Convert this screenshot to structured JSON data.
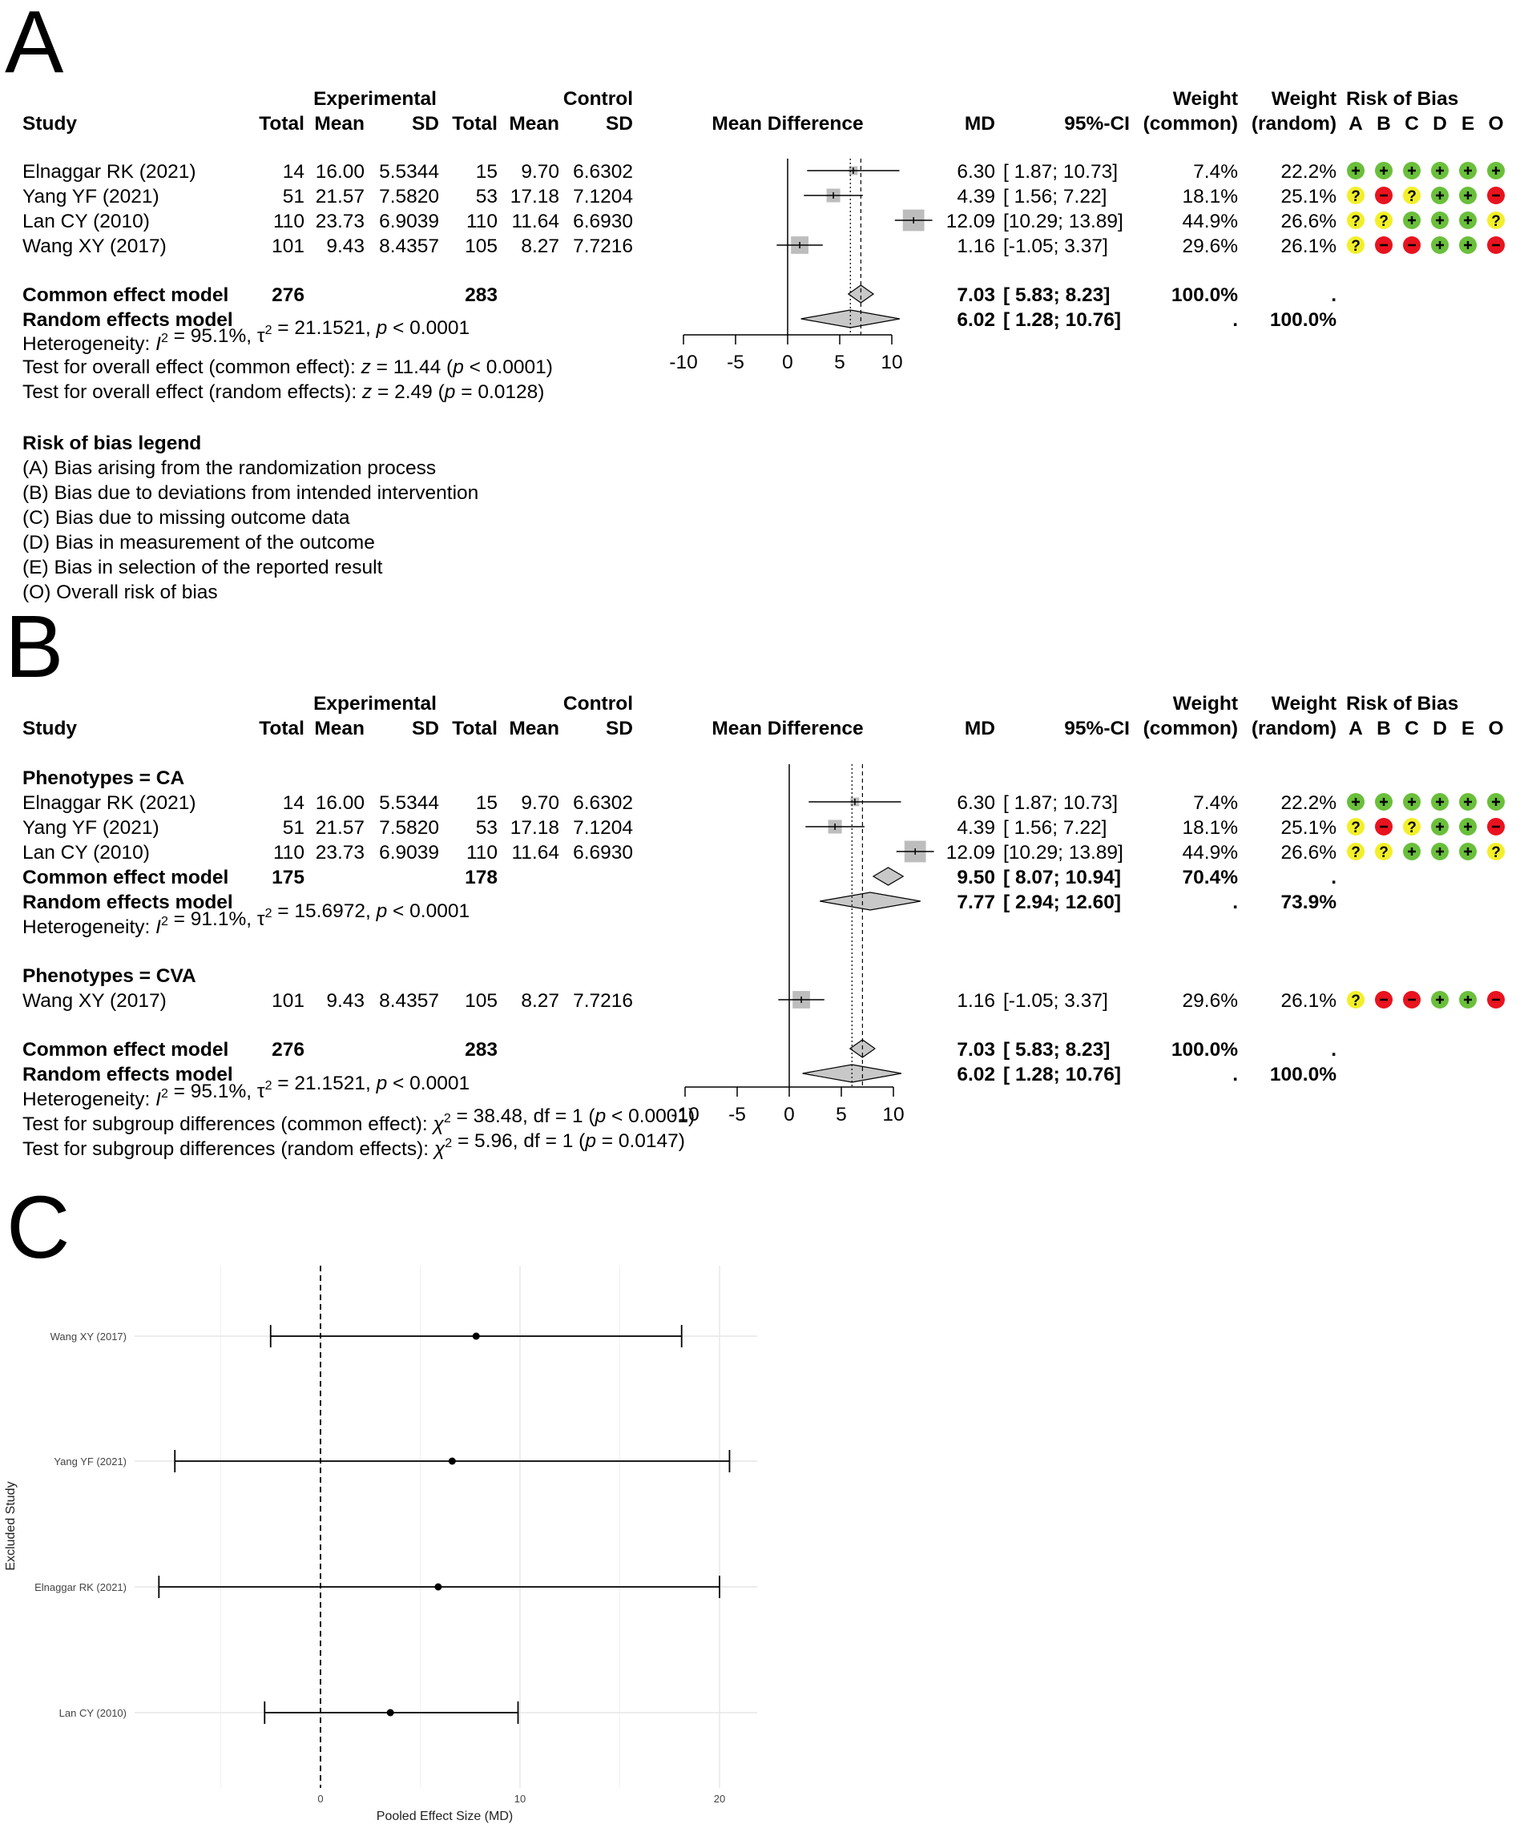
{
  "panel_labels": [
    "A",
    "B",
    "C"
  ],
  "forest_headers": {
    "experimental": "Experimental",
    "control": "Control",
    "study": "Study",
    "total": "Total",
    "mean": "Mean",
    "sd": "SD",
    "mean_difference": "Mean Difference",
    "md": "MD",
    "ci": "95%-CI",
    "weight": "Weight",
    "weight_common": "(common)",
    "weight_random": "(random)",
    "risk_of_bias": "Risk of Bias",
    "rob_domains": [
      "A",
      "B",
      "C",
      "D",
      "E",
      "O"
    ]
  },
  "colors": {
    "low": "#6abf3b",
    "high": "#e8131e",
    "some": "#f2ef2a",
    "box": "#bdbdbd",
    "diamond": "#c8c8c8"
  },
  "panel_a": {
    "studies": [
      {
        "study": "Elnaggar RK (2021)",
        "e_total": "14",
        "e_mean": "16.00",
        "e_sd": "5.5344",
        "c_total": "15",
        "c_mean": "9.70",
        "c_sd": "6.6302",
        "md_text": "6.30",
        "ci_text": "[ 1.87; 10.73]",
        "w_common": "7.4%",
        "w_random": "22.2%",
        "md": 6.3,
        "lo": 1.87,
        "hi": 10.73,
        "rob": [
          "+",
          "+",
          "+",
          "+",
          "+",
          "+"
        ]
      },
      {
        "study": "Yang YF (2021)",
        "e_total": "51",
        "e_mean": "21.57",
        "e_sd": "7.5820",
        "c_total": "53",
        "c_mean": "17.18",
        "c_sd": "7.1204",
        "md_text": "4.39",
        "ci_text": "[ 1.56; 7.22]",
        "w_common": "18.1%",
        "w_random": "25.1%",
        "md": 4.39,
        "lo": 1.56,
        "hi": 7.22,
        "rob": [
          "?",
          "-",
          "?",
          "+",
          "+",
          "-"
        ]
      },
      {
        "study": "Lan CY (2010)",
        "e_total": "110",
        "e_mean": "23.73",
        "e_sd": "6.9039",
        "c_total": "110",
        "c_mean": "11.64",
        "c_sd": "6.6930",
        "md_text": "12.09",
        "ci_text": "[10.29; 13.89]",
        "w_common": "44.9%",
        "w_random": "26.6%",
        "md": 12.09,
        "lo": 10.29,
        "hi": 13.89,
        "rob": [
          "?",
          "?",
          "+",
          "+",
          "+",
          "?"
        ]
      },
      {
        "study": "Wang XY (2017)",
        "e_total": "101",
        "e_mean": "9.43",
        "e_sd": "8.4357",
        "c_total": "105",
        "c_mean": "8.27",
        "c_sd": "7.7216",
        "md_text": "1.16",
        "ci_text": "[-1.05; 3.37]",
        "w_common": "29.6%",
        "w_random": "26.1%",
        "md": 1.16,
        "lo": -1.05,
        "hi": 3.37,
        "rob": [
          "?",
          "-",
          "-",
          "+",
          "+",
          "-"
        ]
      }
    ],
    "common": {
      "label": "Common effect model",
      "e_total": "276",
      "c_total": "283",
      "md_text": "7.03",
      "ci_text": "[ 5.83; 8.23]",
      "w_common": "100.0%",
      "w_random": ".",
      "md": 7.03,
      "lo": 5.83,
      "hi": 8.23
    },
    "random": {
      "label": "Random effects model",
      "md_text": "6.02",
      "ci_text": "[ 1.28; 10.76]",
      "w_common": ".",
      "w_random": "100.0%",
      "md": 6.02,
      "lo": 1.28,
      "hi": 10.76
    },
    "heterogeneity": {
      "label": "Heterogeneity: ",
      "i2": "I",
      "i2_rest": " = 95.1%, ",
      "tau": "τ",
      "tau_rest": " = 21.1521, ",
      "p": "p",
      "p_rest": " < 0.0001"
    },
    "test_common": {
      "pre": "Test for overall effect (common effect): ",
      "z": "z",
      "mid": " = 11.44 (",
      "p": "p",
      "post": " < 0.0001)"
    },
    "test_random": {
      "pre": "Test for overall effect (random effects): ",
      "z": "z",
      "mid": " = 2.49 (",
      "p": "p",
      "post": " = 0.0128)"
    },
    "axis_ticks": [
      "-10",
      "-5",
      "0",
      "5",
      "10"
    ],
    "legend": {
      "title": "Risk of bias legend",
      "items": [
        "(A) Bias arising from the randomization process",
        "(B) Bias due to deviations from intended intervention",
        "(C) Bias due to missing outcome data",
        "(D) Bias in measurement of the outcome",
        "(E) Bias in selection of the reported result",
        "(O) Overall risk of bias"
      ]
    }
  },
  "panel_b": {
    "subgroup_ca": {
      "title": "Phenotypes = CA",
      "common": {
        "label": "Common effect model",
        "e_total": "175",
        "c_total": "178",
        "md_text": "9.50",
        "ci_text": "[ 8.07; 10.94]",
        "w_common": "70.4%",
        "w_random": ".",
        "md": 9.5,
        "lo": 8.07,
        "hi": 10.94
      },
      "random": {
        "label": "Random effects model",
        "md_text": "7.77",
        "ci_text": "[ 2.94; 12.60]",
        "w_common": ".",
        "w_random": "73.9%",
        "md": 7.77,
        "lo": 2.94,
        "hi": 12.6
      },
      "heterogeneity": {
        "label": "Heterogeneity: ",
        "i2": "I",
        "i2_rest": " = 91.1%, ",
        "tau": "τ",
        "tau_rest": " = 15.6972, ",
        "p": "p",
        "p_rest": " < 0.0001"
      }
    },
    "subgroup_cva": {
      "title": "Phenotypes = CVA"
    },
    "common": {
      "label": "Common effect model",
      "e_total": "276",
      "c_total": "283",
      "md_text": "7.03",
      "ci_text": "[ 5.83; 8.23]",
      "w_common": "100.0%",
      "w_random": ".",
      "md": 7.03,
      "lo": 5.83,
      "hi": 8.23
    },
    "random": {
      "label": "Random effects model",
      "md_text": "6.02",
      "ci_text": "[ 1.28; 10.76]",
      "w_common": ".",
      "w_random": "100.0%",
      "md": 6.02,
      "lo": 1.28,
      "hi": 10.76
    },
    "heterogeneity": {
      "label": "Heterogeneity: ",
      "i2": "I",
      "i2_rest": " = 95.1%, ",
      "tau": "τ",
      "tau_rest": " = 21.1521, ",
      "p": "p",
      "p_rest": " < 0.0001"
    },
    "subgroup_common": {
      "pre": "Test for subgroup differences (common effect): ",
      "chi": "χ",
      "mid": " = 38.48, df = 1 (",
      "p": "p",
      "post": " < 0.0001)"
    },
    "subgroup_random": {
      "pre": "Test for subgroup differences (random effects): ",
      "chi": "χ",
      "mid": " = 5.96, df = 1 (",
      "p": "p",
      "post": " = 0.0147)"
    },
    "axis_ticks": [
      "-10",
      "-5",
      "0",
      "5",
      "10"
    ]
  },
  "chart_data": [
    {
      "type": "forest",
      "panel": "A",
      "xlabel": "Mean Difference",
      "xlim": [
        -10,
        10
      ],
      "categories": [
        "Elnaggar RK (2021)",
        "Yang YF (2021)",
        "Lan CY (2010)",
        "Wang XY (2017)"
      ],
      "values": [
        6.3,
        4.39,
        12.09,
        1.16
      ],
      "ci_low": [
        1.87,
        1.56,
        10.29,
        -1.05
      ],
      "ci_high": [
        10.73,
        7.22,
        13.89,
        3.37
      ],
      "common_effect": [
        7.03,
        5.83,
        8.23
      ],
      "random_effects": [
        6.02,
        1.28,
        10.76
      ]
    },
    {
      "type": "forest",
      "panel": "B",
      "xlabel": "Mean Difference",
      "xlim": [
        -10,
        10
      ],
      "categories": [
        "Elnaggar RK (2021)",
        "Yang YF (2021)",
        "Lan CY (2010)",
        "Wang XY (2017)"
      ],
      "values": [
        6.3,
        4.39,
        12.09,
        1.16
      ],
      "ci_low": [
        1.87,
        1.56,
        10.29,
        -1.05
      ],
      "ci_high": [
        10.73,
        7.22,
        13.89,
        3.37
      ]
    },
    {
      "type": "scatter",
      "panel": "C",
      "xlabel": "Pooled Effect Size (MD)",
      "ylabel": "Excluded Study",
      "categories": [
        "Wang XY (2017)",
        "Yang YF (2021)",
        "Elnaggar RK (2021)",
        "Lan CY (2010)"
      ],
      "values": [
        7.8,
        6.6,
        5.9,
        3.5
      ],
      "ci_low": [
        -2.5,
        -7.3,
        -8.1,
        -2.8
      ],
      "ci_high": [
        18.1,
        20.5,
        20.0,
        9.9
      ],
      "x_ticks": [
        "0",
        "10",
        "20"
      ],
      "xlim": [
        -10,
        22
      ],
      "reference_line": 0
    }
  ]
}
